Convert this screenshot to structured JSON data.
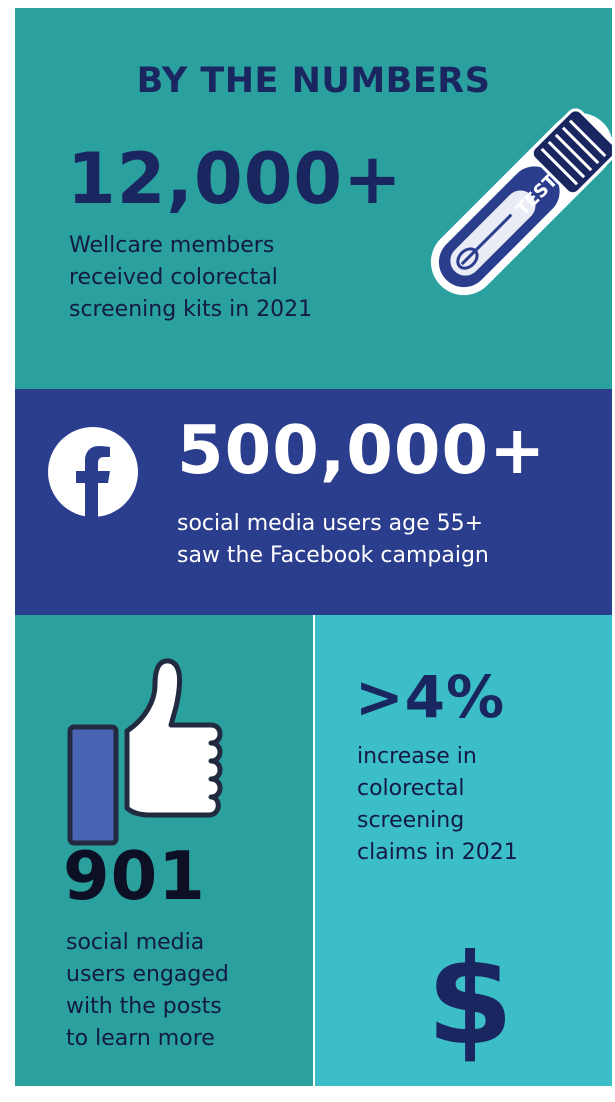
{
  "title": "BY THE NUMBERS",
  "stats": {
    "kits": {
      "number": "12,000+",
      "description": "Wellcare members\nreceived colorectal\nscreening kits in 2021"
    },
    "facebook": {
      "number": "500,000+",
      "description": "social media users age 55+\nsaw the Facebook campaign"
    },
    "engaged": {
      "number": "901",
      "description": "social media\nusers engaged\nwith the posts\nto learn more"
    },
    "claims": {
      "number": ">4%",
      "description": "increase in\ncolorectal\nscreening\nclaims in 2021"
    }
  },
  "test_tube": {
    "label": "TEST"
  },
  "dollar": {
    "symbol": "$"
  },
  "icons": [
    "test-tube-icon",
    "facebook-icon",
    "thumbs-up-icon",
    "dollar-icon"
  ],
  "colors": {
    "teal": "#2aa19f",
    "navy_panel": "#2b3e8e",
    "light_teal": "#3bbec7",
    "dark_navy_text": "#1a2660"
  }
}
